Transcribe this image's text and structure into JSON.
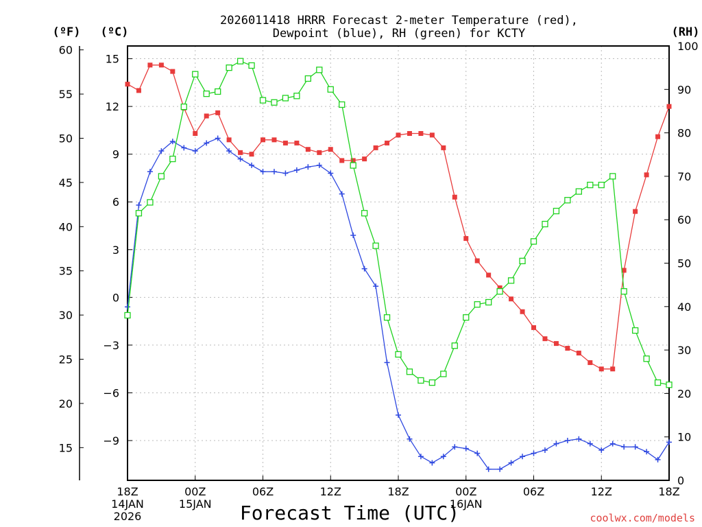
{
  "chart_data": {
    "type": "line",
    "title": "2026011418 HRRR Forecast 2-meter Temperature (red),",
    "subtitle": "Dewpoint (blue), RH (green) for KCTY",
    "xlabel": "Forecast Time (UTC)",
    "credit": "coolwx.com/models",
    "unit_labels": {
      "fahrenheit": "(ºF)",
      "celsius": "(ºC)",
      "rh": "(RH)"
    },
    "x_hours": [
      0,
      1,
      2,
      3,
      4,
      5,
      6,
      7,
      8,
      9,
      10,
      11,
      12,
      13,
      14,
      15,
      16,
      17,
      18,
      19,
      20,
      21,
      22,
      23,
      24,
      25,
      26,
      27,
      28,
      29,
      30,
      31,
      32,
      33,
      34,
      35,
      36,
      37,
      38,
      39,
      40,
      41,
      42,
      43,
      44,
      45,
      46,
      47,
      48
    ],
    "xlim": [
      0,
      48
    ],
    "x_ticks": [
      {
        "hour": 0,
        "lines": [
          "18Z",
          "14JAN",
          "2026"
        ]
      },
      {
        "hour": 6,
        "lines": [
          "00Z",
          "15JAN"
        ]
      },
      {
        "hour": 12,
        "lines": [
          "06Z"
        ]
      },
      {
        "hour": 18,
        "lines": [
          "12Z"
        ]
      },
      {
        "hour": 24,
        "lines": [
          "18Z"
        ]
      },
      {
        "hour": 30,
        "lines": [
          "00Z",
          "16JAN"
        ]
      },
      {
        "hour": 36,
        "lines": [
          "06Z"
        ]
      },
      {
        "hour": 42,
        "lines": [
          "12Z"
        ]
      },
      {
        "hour": 48,
        "lines": [
          "18Z"
        ]
      }
    ],
    "y_celsius_ticks": [
      "15",
      "12",
      "9",
      "6",
      "3",
      "0",
      "−3",
      "−6",
      "−9"
    ],
    "y_celsius_values": [
      15,
      12,
      9,
      6,
      3,
      0,
      -3,
      -6,
      -9
    ],
    "y_celsius_range": [
      -11.5,
      15.8
    ],
    "y_fahrenheit_ticks": [
      "60",
      "55",
      "50",
      "45",
      "40",
      "35",
      "30",
      "25",
      "20",
      "15"
    ],
    "y_fahrenheit_values": [
      60,
      55,
      50,
      45,
      40,
      35,
      30,
      25,
      20,
      15
    ],
    "y_rh_ticks": [
      "100",
      "90",
      "80",
      "70",
      "60",
      "50",
      "40",
      "30",
      "20",
      "10",
      "0"
    ],
    "y_rh_values": [
      100,
      90,
      80,
      70,
      60,
      50,
      40,
      30,
      20,
      10,
      0
    ],
    "y_rh_range": [
      0,
      100
    ],
    "series": [
      {
        "name": "Temperature",
        "unit": "C",
        "color": "#e83c3c",
        "marker": "filled-square",
        "values": [
          13.4,
          13.0,
          14.6,
          14.6,
          14.2,
          11.9,
          10.3,
          11.4,
          11.6,
          9.9,
          9.1,
          9.0,
          9.9,
          9.9,
          9.7,
          9.7,
          9.3,
          9.1,
          9.3,
          8.6,
          8.6,
          8.7,
          9.4,
          9.7,
          10.2,
          10.3,
          10.3,
          10.2,
          9.4,
          6.3,
          3.7,
          2.3,
          1.4,
          0.6,
          -0.1,
          -0.9,
          -1.9,
          -2.6,
          -2.9,
          -3.2,
          -3.5,
          -4.1,
          -4.5,
          -4.5,
          1.7,
          5.4,
          7.7,
          10.1,
          12.0
        ]
      },
      {
        "name": "Dewpoint",
        "unit": "C",
        "color": "#2e48e0",
        "marker": "plus",
        "values": [
          -0.6,
          5.8,
          7.9,
          9.2,
          9.8,
          9.4,
          9.2,
          9.7,
          10.0,
          9.2,
          8.7,
          8.3,
          7.9,
          7.9,
          7.8,
          8.0,
          8.2,
          8.3,
          7.8,
          6.5,
          3.9,
          1.8,
          0.7,
          -4.1,
          -7.4,
          -8.9,
          -10.0,
          -10.4,
          -10.0,
          -9.4,
          -9.5,
          -9.8,
          -10.8,
          -10.8,
          -10.4,
          -10.0,
          -9.8,
          -9.6,
          -9.2,
          -9.0,
          -8.9,
          -9.2,
          -9.6,
          -9.2,
          -9.4,
          -9.4,
          -9.7,
          -10.2,
          -9.1
        ]
      },
      {
        "name": "RH",
        "unit": "%",
        "color": "#1fd21f",
        "marker": "open-square",
        "values": [
          38,
          61.5,
          64,
          70,
          74,
          86,
          93.5,
          89,
          89.5,
          95,
          96.5,
          95.5,
          87.5,
          87,
          88,
          88.5,
          92.5,
          94.5,
          90,
          86.5,
          72.5,
          61.5,
          54,
          37.5,
          29,
          25,
          23,
          22.5,
          24.5,
          31,
          37.5,
          40.5,
          41,
          43.5,
          46,
          50.5,
          55,
          59,
          62,
          64.5,
          66.5,
          68,
          68,
          70,
          43.5,
          34.5,
          28,
          22.5,
          22
        ]
      }
    ]
  }
}
